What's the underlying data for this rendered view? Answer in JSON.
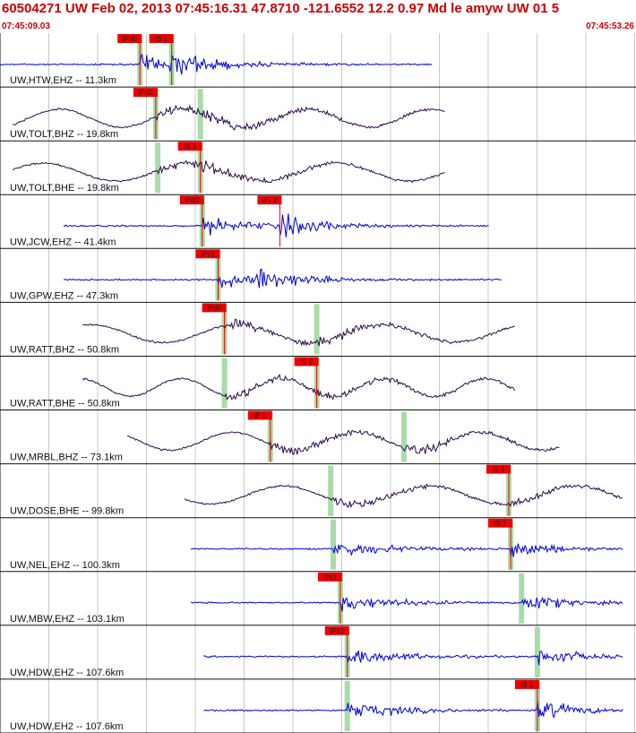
{
  "header": {
    "event_line": "60504271 UW Feb 02, 2013 07:45:16.31    47.8710 -121.6552 12.2 0.97 Md le amyw UW 01    5",
    "start_time": "07:45:09.03",
    "end_time": "07:45:53.26"
  },
  "colors": {
    "header_text": "#cc0000",
    "blue_trace": "#0000dd",
    "long_period_trace": "#2a0a4a",
    "pick_flag": "#ee0000",
    "pick_bar": "#a8dca8",
    "grid": "#c8c8c8",
    "label": "#111111"
  },
  "chart_data": {
    "type": "seismogram",
    "time_axis": {
      "start": "07:45:09.03",
      "end": "07:45:53.26"
    },
    "gridlines": true,
    "traces": [
      {
        "label": "UW,HTW,EHZ -- 11.3km",
        "color": "blue",
        "picks": [
          {
            "flag": "iPd0",
            "pos": 0.22,
            "bar": true
          },
          {
            "flag": "iS 1",
            "pos": 0.27,
            "bar": true
          }
        ]
      },
      {
        "label": "UW,TOLT,BHZ -- 19.8km",
        "color": "dark",
        "picks": [
          {
            "flag": "iPd0",
            "pos": 0.245,
            "bar": true
          },
          {
            "flag": "",
            "pos": 0.315,
            "bar": true
          }
        ]
      },
      {
        "label": "UW,TOLT,BHE -- 19.8km",
        "color": "dark",
        "picks": [
          {
            "flag": "",
            "pos": 0.248,
            "bar": true
          },
          {
            "flag": "iS 1",
            "pos": 0.315,
            "bar": true
          }
        ]
      },
      {
        "label": "UW,JCW,EHZ -- 41.4km",
        "color": "blue",
        "picks": [
          {
            "flag": "iPd0",
            "pos": 0.318,
            "bar": true
          },
          {
            "flag": "eS 2",
            "pos": 0.44,
            "bar": false
          }
        ]
      },
      {
        "label": "UW,GPW,EHZ -- 47.3km",
        "color": "blue",
        "picks": [
          {
            "flag": "iPc1",
            "pos": 0.343,
            "bar": true
          }
        ]
      },
      {
        "label": "UW,RATT,BHZ -- 50.8km",
        "color": "dark",
        "picks": [
          {
            "flag": "iPd0",
            "pos": 0.353,
            "bar": true
          },
          {
            "flag": "",
            "pos": 0.498,
            "bar": true
          }
        ]
      },
      {
        "label": "UW,RATT,BHE -- 50.8km",
        "color": "dark",
        "picks": [
          {
            "flag": "",
            "pos": 0.353,
            "bar": true
          },
          {
            "flag": "iS 1",
            "pos": 0.498,
            "bar": true
          }
        ]
      },
      {
        "label": "UW,MRBL,BHZ -- 73.1km",
        "color": "dark",
        "picks": [
          {
            "flag": "iP 1",
            "pos": 0.425,
            "bar": true
          },
          {
            "flag": "",
            "pos": 0.635,
            "bar": true
          }
        ]
      },
      {
        "label": "UW,DOSE,BHE -- 99.8km",
        "color": "dark",
        "picks": [
          {
            "flag": "",
            "pos": 0.52,
            "bar": true
          },
          {
            "flag": "iS 1",
            "pos": 0.8,
            "bar": true
          }
        ]
      },
      {
        "label": "UW,NEL,EHZ -- 100.3km",
        "color": "blue",
        "picks": [
          {
            "flag": "",
            "pos": 0.524,
            "bar": true
          },
          {
            "flag": "iS 1",
            "pos": 0.803,
            "bar": true
          }
        ]
      },
      {
        "label": "UW,MBW,EHZ -- 103.1km",
        "color": "blue",
        "picks": [
          {
            "flag": "iPc1",
            "pos": 0.535,
            "bar": true
          },
          {
            "flag": "",
            "pos": 0.82,
            "bar": true
          }
        ]
      },
      {
        "label": "UW,HDW,EHZ -- 107.6km",
        "color": "blue",
        "picks": [
          {
            "flag": "iPd1",
            "pos": 0.546,
            "bar": true
          },
          {
            "flag": "",
            "pos": 0.845,
            "bar": true
          }
        ]
      },
      {
        "label": "UW,HDW,EH2 -- 107.6km",
        "color": "blue",
        "picks": [
          {
            "flag": "",
            "pos": 0.546,
            "bar": true
          },
          {
            "flag": "iS 1",
            "pos": 0.845,
            "bar": true
          }
        ]
      }
    ]
  }
}
